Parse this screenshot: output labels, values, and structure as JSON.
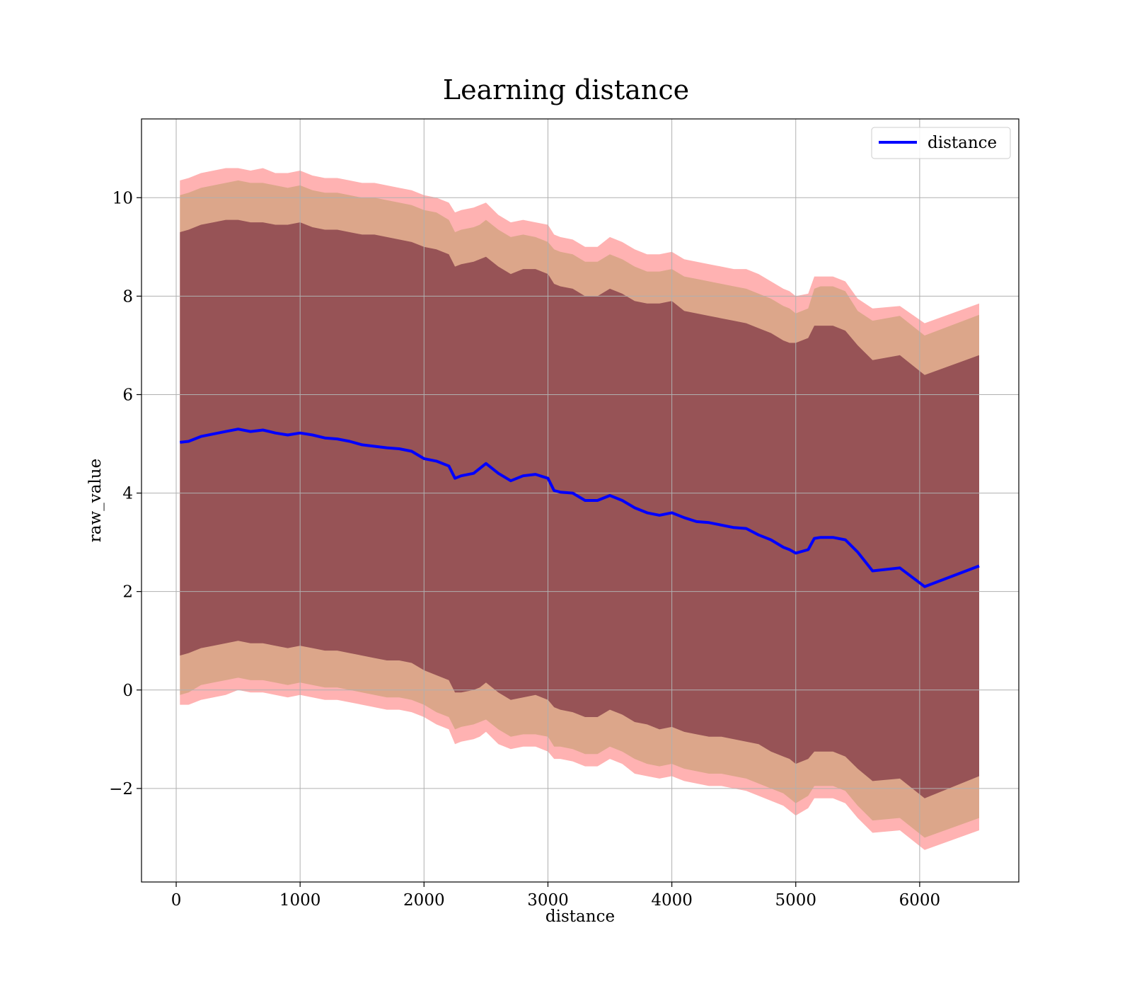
{
  "chart_data": {
    "type": "line",
    "title": "Learning distance",
    "xlabel": "distance",
    "ylabel": "raw_value",
    "xlim": [
      -280,
      6800
    ],
    "ylim": [
      -3.9,
      11.6
    ],
    "xticks": [
      0,
      1000,
      2000,
      3000,
      4000,
      5000,
      6000
    ],
    "xtick_labels": [
      "0",
      "1000",
      "2000",
      "3000",
      "4000",
      "5000",
      "6000"
    ],
    "yticks": [
      -2,
      0,
      2,
      4,
      6,
      8,
      10
    ],
    "ytick_labels": [
      "−2",
      "0",
      "2",
      "4",
      "6",
      "8",
      "10"
    ],
    "grid": true,
    "legend": {
      "position": "top-right",
      "entries": [
        {
          "label": "distance",
          "color": "#0000ff"
        }
      ]
    },
    "x": [
      30,
      100,
      200,
      300,
      400,
      500,
      600,
      700,
      800,
      900,
      1000,
      1100,
      1200,
      1300,
      1400,
      1500,
      1600,
      1700,
      1800,
      1900,
      2000,
      2100,
      2200,
      2250,
      2300,
      2400,
      2450,
      2500,
      2600,
      2700,
      2800,
      2900,
      3000,
      3050,
      3100,
      3200,
      3300,
      3400,
      3500,
      3600,
      3700,
      3800,
      3900,
      4000,
      4100,
      4200,
      4300,
      4400,
      4500,
      4600,
      4700,
      4800,
      4900,
      4950,
      5000,
      5100,
      5150,
      5200,
      5300,
      5400,
      5500,
      5620,
      5840,
      6040,
      6480
    ],
    "series": [
      {
        "name": "distance",
        "color": "#0000ff",
        "values": [
          5.03,
          5.05,
          5.15,
          5.2,
          5.25,
          5.3,
          5.25,
          5.28,
          5.22,
          5.18,
          5.22,
          5.18,
          5.12,
          5.1,
          5.05,
          4.98,
          4.95,
          4.92,
          4.9,
          4.85,
          4.7,
          4.65,
          4.55,
          4.3,
          4.35,
          4.4,
          4.5,
          4.6,
          4.4,
          4.25,
          4.35,
          4.38,
          4.3,
          4.05,
          4.02,
          4.0,
          3.85,
          3.85,
          3.95,
          3.85,
          3.7,
          3.6,
          3.55,
          3.6,
          3.5,
          3.42,
          3.4,
          3.35,
          3.3,
          3.28,
          3.15,
          3.05,
          2.9,
          2.85,
          2.78,
          2.85,
          3.08,
          3.1,
          3.1,
          3.05,
          2.8,
          2.42,
          2.48,
          2.1,
          2.52
        ]
      }
    ],
    "bands": [
      {
        "color": "#ff0000",
        "opacity": 0.3,
        "upper": [
          10.35,
          10.4,
          10.5,
          10.55,
          10.6,
          10.6,
          10.55,
          10.6,
          10.5,
          10.5,
          10.55,
          10.45,
          10.4,
          10.4,
          10.35,
          10.3,
          10.3,
          10.25,
          10.2,
          10.15,
          10.05,
          10.0,
          9.9,
          9.7,
          9.75,
          9.8,
          9.85,
          9.9,
          9.65,
          9.5,
          9.55,
          9.5,
          9.45,
          9.25,
          9.2,
          9.15,
          9.0,
          9.0,
          9.2,
          9.1,
          8.95,
          8.85,
          8.85,
          8.9,
          8.75,
          8.7,
          8.65,
          8.6,
          8.55,
          8.55,
          8.45,
          8.3,
          8.15,
          8.1,
          8.0,
          8.05,
          8.4,
          8.4,
          8.4,
          8.3,
          7.95,
          7.75,
          7.8,
          7.45,
          7.85
        ],
        "lower": [
          -0.3,
          -0.3,
          -0.2,
          -0.15,
          -0.1,
          0.0,
          -0.05,
          -0.05,
          -0.1,
          -0.15,
          -0.1,
          -0.15,
          -0.2,
          -0.2,
          -0.25,
          -0.3,
          -0.35,
          -0.4,
          -0.4,
          -0.45,
          -0.55,
          -0.7,
          -0.8,
          -1.1,
          -1.05,
          -1.0,
          -0.95,
          -0.85,
          -1.1,
          -1.2,
          -1.15,
          -1.15,
          -1.25,
          -1.4,
          -1.4,
          -1.45,
          -1.55,
          -1.55,
          -1.4,
          -1.5,
          -1.7,
          -1.75,
          -1.8,
          -1.75,
          -1.85,
          -1.9,
          -1.95,
          -1.95,
          -2.0,
          -2.05,
          -2.15,
          -2.25,
          -2.35,
          -2.45,
          -2.55,
          -2.4,
          -2.2,
          -2.2,
          -2.2,
          -2.3,
          -2.6,
          -2.9,
          -2.85,
          -3.25,
          -2.85
        ]
      },
      {
        "color": "#8c8b2e",
        "opacity": 0.3,
        "upper": [
          10.05,
          10.1,
          10.2,
          10.25,
          10.3,
          10.35,
          10.3,
          10.3,
          10.25,
          10.2,
          10.25,
          10.15,
          10.1,
          10.1,
          10.05,
          10.0,
          10.0,
          9.95,
          9.9,
          9.85,
          9.75,
          9.7,
          9.55,
          9.3,
          9.35,
          9.4,
          9.45,
          9.55,
          9.35,
          9.2,
          9.25,
          9.2,
          9.1,
          8.95,
          8.9,
          8.85,
          8.7,
          8.7,
          8.85,
          8.75,
          8.6,
          8.5,
          8.5,
          8.55,
          8.4,
          8.35,
          8.3,
          8.25,
          8.2,
          8.15,
          8.05,
          7.95,
          7.8,
          7.75,
          7.65,
          7.75,
          8.15,
          8.2,
          8.2,
          8.1,
          7.7,
          7.5,
          7.6,
          7.2,
          7.62
        ],
        "lower": [
          -0.1,
          -0.05,
          0.1,
          0.15,
          0.2,
          0.25,
          0.2,
          0.2,
          0.15,
          0.1,
          0.15,
          0.1,
          0.05,
          0.05,
          0.0,
          -0.05,
          -0.1,
          -0.15,
          -0.15,
          -0.2,
          -0.3,
          -0.45,
          -0.55,
          -0.8,
          -0.75,
          -0.7,
          -0.65,
          -0.6,
          -0.8,
          -0.95,
          -0.9,
          -0.9,
          -0.95,
          -1.15,
          -1.15,
          -1.2,
          -1.3,
          -1.3,
          -1.15,
          -1.25,
          -1.4,
          -1.5,
          -1.55,
          -1.5,
          -1.6,
          -1.65,
          -1.7,
          -1.7,
          -1.75,
          -1.8,
          -1.9,
          -2.0,
          -2.1,
          -2.2,
          -2.3,
          -2.15,
          -1.95,
          -1.95,
          -1.95,
          -2.05,
          -2.35,
          -2.65,
          -2.6,
          -3.0,
          -2.6
        ]
      },
      {
        "color": "#5e0e2c",
        "opacity": 0.55,
        "upper": [
          9.3,
          9.35,
          9.45,
          9.5,
          9.55,
          9.55,
          9.5,
          9.5,
          9.45,
          9.45,
          9.5,
          9.4,
          9.35,
          9.35,
          9.3,
          9.25,
          9.25,
          9.2,
          9.15,
          9.1,
          9.0,
          8.95,
          8.85,
          8.6,
          8.65,
          8.7,
          8.75,
          8.8,
          8.6,
          8.45,
          8.55,
          8.55,
          8.45,
          8.25,
          8.2,
          8.15,
          8.0,
          8.0,
          8.15,
          8.05,
          7.9,
          7.85,
          7.85,
          7.9,
          7.7,
          7.65,
          7.6,
          7.55,
          7.5,
          7.45,
          7.35,
          7.25,
          7.1,
          7.05,
          7.05,
          7.15,
          7.4,
          7.4,
          7.4,
          7.3,
          7.0,
          6.7,
          6.8,
          6.4,
          6.8
        ],
        "lower": [
          0.7,
          0.75,
          0.85,
          0.9,
          0.95,
          1.0,
          0.95,
          0.95,
          0.9,
          0.85,
          0.9,
          0.85,
          0.8,
          0.8,
          0.75,
          0.7,
          0.65,
          0.6,
          0.6,
          0.55,
          0.4,
          0.3,
          0.2,
          -0.05,
          -0.05,
          0.0,
          0.05,
          0.15,
          -0.05,
          -0.2,
          -0.15,
          -0.1,
          -0.2,
          -0.35,
          -0.4,
          -0.45,
          -0.55,
          -0.55,
          -0.4,
          -0.5,
          -0.65,
          -0.7,
          -0.8,
          -0.75,
          -0.85,
          -0.9,
          -0.95,
          -0.95,
          -1.0,
          -1.05,
          -1.1,
          -1.25,
          -1.35,
          -1.4,
          -1.5,
          -1.4,
          -1.25,
          -1.25,
          -1.25,
          -1.35,
          -1.6,
          -1.85,
          -1.8,
          -2.2,
          -1.75
        ]
      }
    ]
  }
}
